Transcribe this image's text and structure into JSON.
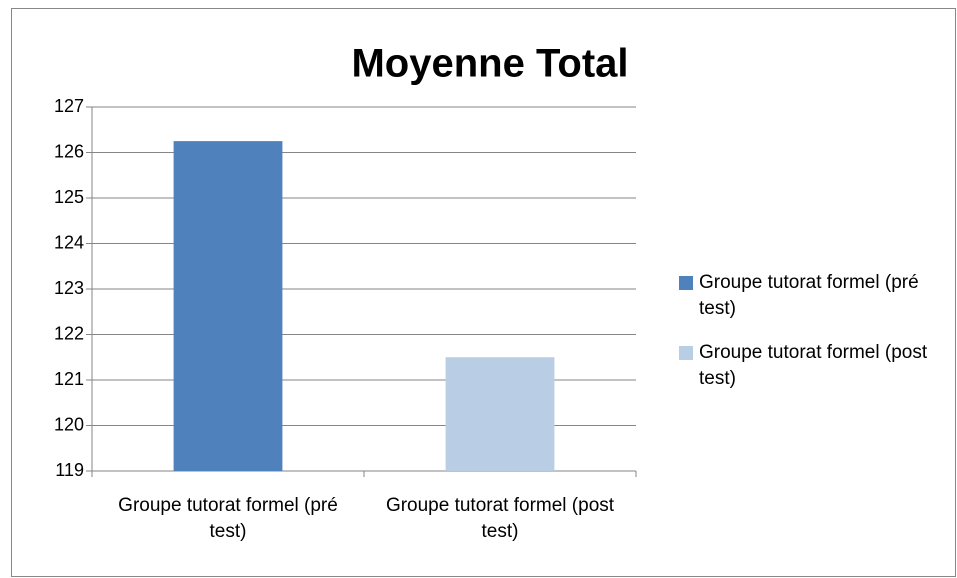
{
  "chart_data": {
    "type": "bar",
    "title": "Moyenne Total",
    "categories": [
      "Groupe tutorat formel (pré test)",
      "Groupe tutorat formel (post test)"
    ],
    "values": [
      126.25,
      121.5
    ],
    "colors": [
      "#4f81bd",
      "#b9cde5"
    ],
    "ylim": [
      119,
      127
    ],
    "yticks": [
      119,
      120,
      121,
      122,
      123,
      124,
      125,
      126,
      127
    ],
    "grid": true,
    "legend": "right"
  }
}
